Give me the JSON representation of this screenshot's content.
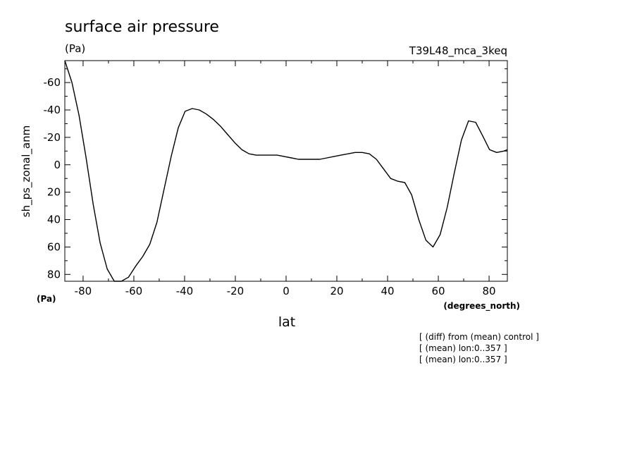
{
  "chart_data": {
    "type": "line",
    "title": "surface air pressure",
    "units_label": "(Pa)",
    "run_label": "T39L48_mca_3keq",
    "ylabel": "sh_ps_zonal_anm",
    "y_unit_label": "(Pa)",
    "xlabel": "lat",
    "x_unit_label": "(degrees_north)",
    "notes": [
      "[ (diff) from (mean) control ]",
      "[ (mean) lon:0..357 ]",
      "[ (mean) lon:0..357 ]"
    ],
    "xlim": [
      -87.2,
      87.2
    ],
    "ylim": [
      85,
      -76
    ],
    "y_reversed": true,
    "x_ticks": [
      -80,
      -60,
      -40,
      -20,
      0,
      20,
      40,
      60,
      80
    ],
    "x_tick_labels": [
      "-80",
      "-60",
      "-40",
      "-20",
      "0",
      "20",
      "40",
      "60",
      "80"
    ],
    "y_ticks": [
      -60,
      -40,
      -20,
      0,
      20,
      40,
      60,
      80
    ],
    "y_tick_labels": [
      "-60",
      "-40",
      "-20",
      "0",
      "20",
      "40",
      "60",
      "80"
    ],
    "series": [
      {
        "x": [
          -87.2,
          -84.4,
          -81.6,
          -78.8,
          -76.0,
          -73.3,
          -70.5,
          -67.7,
          -64.9,
          -62.1,
          -59.3,
          -56.5,
          -53.7,
          -50.9,
          -48.1,
          -45.3,
          -42.5,
          -39.8,
          -37.0,
          -34.2,
          -31.4,
          -28.6,
          -25.8,
          -23.0,
          -20.2,
          -17.4,
          -14.6,
          -11.8,
          -9.1,
          -6.3,
          -3.5,
          -0.7,
          2.1,
          4.9,
          7.7,
          10.5,
          13.3,
          16.1,
          18.8,
          21.6,
          24.4,
          27.2,
          30.0,
          32.8,
          35.6,
          38.4,
          41.2,
          44.0,
          46.8,
          49.5,
          52.3,
          55.1,
          57.9,
          60.7,
          63.5,
          66.3,
          69.1,
          71.9,
          74.7,
          77.5,
          80.2,
          83.0,
          85.8,
          87.2
        ],
        "y": [
          -76,
          -60,
          -36,
          -5,
          29,
          57,
          76,
          85,
          86,
          82,
          74,
          67,
          58,
          42,
          18,
          -6,
          -27,
          -39,
          -41,
          -40,
          -37,
          -33,
          -28,
          -22,
          -16,
          -11,
          -8,
          -7,
          -7,
          -7,
          -7,
          -6,
          -5,
          -4,
          -4,
          -4,
          -4,
          -5,
          -6,
          -7,
          -8,
          -9,
          -9,
          -8,
          -4,
          3,
          10,
          12,
          13,
          22,
          40,
          55,
          60,
          51,
          31,
          6,
          -18,
          -32,
          -31,
          -21,
          -11,
          -9,
          -10,
          -11
        ]
      }
    ]
  }
}
